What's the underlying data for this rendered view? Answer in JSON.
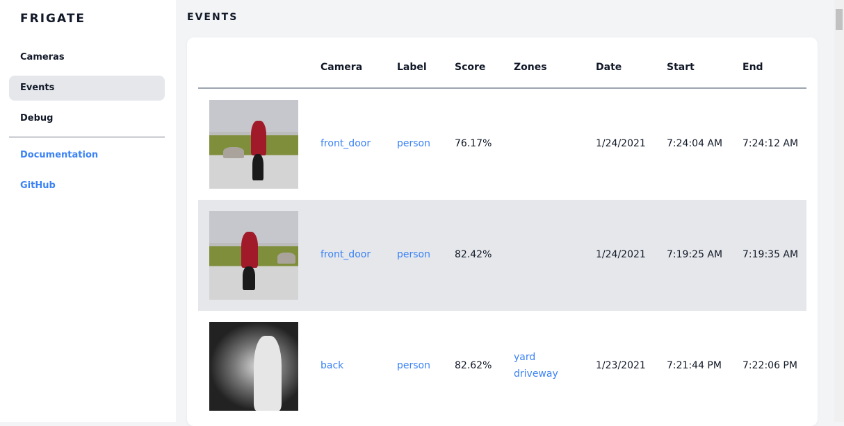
{
  "sidebar": {
    "logo": "FRIGATE",
    "items": [
      {
        "label": "Cameras"
      },
      {
        "label": "Events",
        "active": true
      },
      {
        "label": "Debug"
      }
    ],
    "links": [
      {
        "label": "Documentation"
      },
      {
        "label": "GitHub"
      }
    ]
  },
  "main": {
    "title": "EVENTS"
  },
  "table": {
    "headers": [
      "Camera",
      "Label",
      "Score",
      "Zones",
      "Date",
      "Start",
      "End"
    ],
    "rows": [
      {
        "camera": "front_door",
        "label": "person",
        "score": "76.17%",
        "zones": [
          "",
          ""
        ],
        "date": "1/24/2021",
        "start": "7:24:04 AM",
        "end": "7:24:12 AM"
      },
      {
        "camera": "front_door",
        "label": "person",
        "score": "82.42%",
        "zones": [
          "",
          ""
        ],
        "date": "1/24/2021",
        "start": "7:19:25 AM",
        "end": "7:19:35 AM"
      },
      {
        "camera": "back",
        "label": "person",
        "score": "82.62%",
        "zones": [
          "yard",
          "driveway"
        ],
        "date": "1/23/2021",
        "start": "7:21:44 PM",
        "end": "7:22:06 PM"
      }
    ]
  },
  "colors": {
    "accent": "#3b82f6",
    "active_bg": "#e5e7eb"
  }
}
